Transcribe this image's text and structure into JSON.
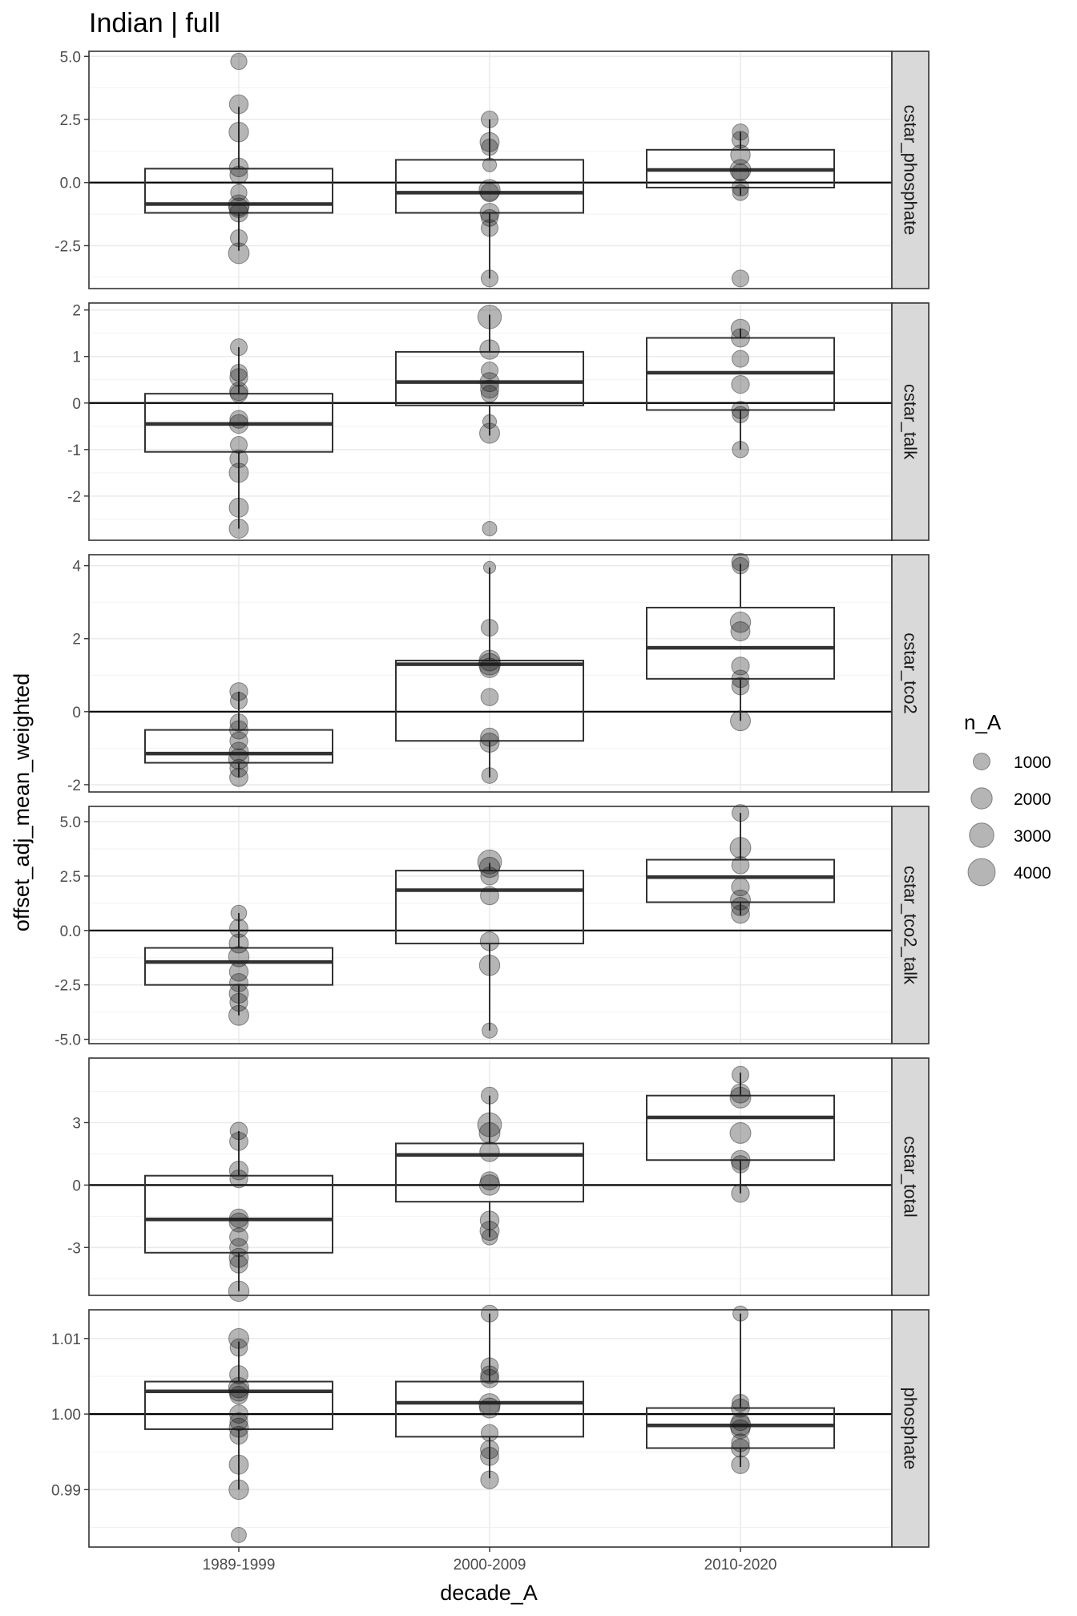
{
  "chart_data": {
    "type": "boxplot",
    "title": "Indian | full",
    "xlabel": "decade_A",
    "ylabel": "offset_adj_mean_weighted",
    "categories": [
      "1989-1999",
      "2000-2009",
      "2010-2020"
    ],
    "legend": {
      "title": "n_A",
      "placement": "right",
      "values": [
        1000,
        2000,
        3000,
        4000
      ],
      "labels": [
        "1000",
        "2000",
        "3000",
        "4000"
      ]
    },
    "facets": [
      {
        "label": "cstar_phosphate",
        "ylim": [
          -4.2,
          5.2
        ],
        "ticks": [
          -2.5,
          0.0,
          2.5,
          5.0
        ],
        "tick_labels": [
          "-2.5",
          "0.0",
          "2.5",
          "5.0"
        ],
        "hline": 0,
        "boxes": [
          {
            "q1": -1.2,
            "median": -0.85,
            "q3": 0.55,
            "low": -2.7,
            "high": 3.0
          },
          {
            "q1": -1.2,
            "median": -0.4,
            "q3": 0.9,
            "low": -3.8,
            "high": 2.5
          },
          {
            "q1": -0.2,
            "median": 0.5,
            "q3": 1.3,
            "low": -0.5,
            "high": 2.0
          }
        ],
        "points": [
          [
            [
              4.8,
              900
            ],
            [
              3.1,
              1400
            ],
            [
              2.0,
              1600
            ],
            [
              0.6,
              1400
            ],
            [
              0.3,
              1200
            ],
            [
              -0.4,
              900
            ],
            [
              -0.9,
              1900
            ],
            [
              -1.0,
              1600
            ],
            [
              -1.2,
              1300
            ],
            [
              -2.2,
              1000
            ],
            [
              -2.8,
              1900
            ]
          ],
          [
            [
              2.5,
              1000
            ],
            [
              1.6,
              1500
            ],
            [
              1.4,
              900
            ],
            [
              0.7,
              500
            ],
            [
              -0.3,
              2000
            ],
            [
              -0.4,
              1300
            ],
            [
              -1.2,
              1500
            ],
            [
              -1.4,
              1000
            ],
            [
              -1.8,
              1000
            ],
            [
              -3.8,
              1000
            ]
          ],
          [
            [
              2.0,
              900
            ],
            [
              1.7,
              1000
            ],
            [
              1.1,
              1600
            ],
            [
              0.5,
              1900
            ],
            [
              0.4,
              1100
            ],
            [
              -0.2,
              1000
            ],
            [
              -0.4,
              800
            ],
            [
              -3.8,
              1000
            ]
          ]
        ]
      },
      {
        "label": "cstar_talk",
        "ylim": [
          -2.95,
          2.15
        ],
        "ticks": [
          -2,
          -1,
          0,
          1,
          2
        ],
        "tick_labels": [
          "-2",
          "-1",
          "0",
          "1",
          "2"
        ],
        "hline": 0,
        "boxes": [
          {
            "q1": -1.05,
            "median": -0.45,
            "q3": 0.2,
            "low": -2.7,
            "high": 1.2
          },
          {
            "q1": -0.05,
            "median": 0.45,
            "q3": 1.1,
            "low": -0.7,
            "high": 1.9
          },
          {
            "q1": -0.15,
            "median": 0.65,
            "q3": 1.4,
            "low": -1.0,
            "high": 1.6
          }
        ],
        "points": [
          [
            [
              1.2,
              1000
            ],
            [
              0.65,
              1000
            ],
            [
              0.55,
              1200
            ],
            [
              0.25,
              1300
            ],
            [
              0.2,
              1100
            ],
            [
              -0.35,
              1200
            ],
            [
              -0.45,
              1400
            ],
            [
              -0.9,
              1000
            ],
            [
              -1.2,
              1200
            ],
            [
              -1.5,
              1500
            ],
            [
              -2.25,
              1500
            ],
            [
              -2.7,
              1500
            ]
          ],
          [
            [
              1.85,
              2700
            ],
            [
              1.15,
              1600
            ],
            [
              0.7,
              1000
            ],
            [
              0.45,
              1500
            ],
            [
              0.3,
              1300
            ],
            [
              0.2,
              1000
            ],
            [
              -0.4,
              500
            ],
            [
              -0.65,
              1700
            ],
            [
              -2.7,
              600
            ]
          ],
          [
            [
              1.6,
              1400
            ],
            [
              1.4,
              1300
            ],
            [
              0.95,
              1000
            ],
            [
              0.4,
              1200
            ],
            [
              -0.15,
              1100
            ],
            [
              -0.25,
              900
            ],
            [
              -1.0,
              900
            ]
          ]
        ]
      },
      {
        "label": "cstar_tco2",
        "ylim": [
          -2.2,
          4.3
        ],
        "ticks": [
          -2,
          0,
          2,
          4
        ],
        "tick_labels": [
          "-2",
          "0",
          "2",
          "4"
        ],
        "hline": 0,
        "boxes": [
          {
            "q1": -1.4,
            "median": -1.15,
            "q3": -0.5,
            "low": -1.8,
            "high": 0.55
          },
          {
            "q1": -0.8,
            "median": 1.3,
            "q3": 1.4,
            "low": -1.8,
            "high": 3.95
          },
          {
            "q1": 0.9,
            "median": 1.75,
            "q3": 2.85,
            "low": -0.25,
            "high": 4.05
          }
        ],
        "points": [
          [
            [
              0.55,
              1200
            ],
            [
              0.3,
              1000
            ],
            [
              -0.3,
              1100
            ],
            [
              -0.5,
              1300
            ],
            [
              -0.8,
              1200
            ],
            [
              -1.1,
              1500
            ],
            [
              -1.3,
              1800
            ],
            [
              -1.55,
              1200
            ],
            [
              -1.8,
              1300
            ]
          ],
          [
            [
              3.95,
              300
            ],
            [
              2.3,
              1000
            ],
            [
              1.4,
              1900
            ],
            [
              1.3,
              2100
            ],
            [
              1.2,
              1600
            ],
            [
              0.4,
              1100
            ],
            [
              -0.7,
              1300
            ],
            [
              -0.85,
              1500
            ],
            [
              -1.75,
              800
            ]
          ],
          [
            [
              4.1,
              1100
            ],
            [
              4.0,
              900
            ],
            [
              2.45,
              1800
            ],
            [
              2.2,
              1500
            ],
            [
              1.25,
              1200
            ],
            [
              0.9,
              1100
            ],
            [
              0.7,
              1100
            ],
            [
              -0.25,
              1700
            ]
          ]
        ]
      },
      {
        "label": "cstar_tco2_talk",
        "ylim": [
          -5.2,
          5.7
        ],
        "ticks": [
          -5.0,
          -2.5,
          0.0,
          2.5,
          5.0
        ],
        "tick_labels": [
          "-5.0",
          "-2.5",
          "0.0",
          "2.5",
          "5.0"
        ],
        "hline": 0,
        "boxes": [
          {
            "q1": -2.5,
            "median": -1.45,
            "q3": -0.8,
            "low": -3.9,
            "high": 0.8
          },
          {
            "q1": -0.6,
            "median": 1.85,
            "q3": 2.75,
            "low": -4.6,
            "high": 3.1
          },
          {
            "q1": 1.3,
            "median": 2.45,
            "q3": 3.25,
            "low": 0.7,
            "high": 5.4
          }
        ],
        "points": [
          [
            [
              0.8,
              800
            ],
            [
              0.1,
              1300
            ],
            [
              -0.6,
              1500
            ],
            [
              -1.2,
              1800
            ],
            [
              -1.9,
              1400
            ],
            [
              -2.4,
              1300
            ],
            [
              -2.9,
              1500
            ],
            [
              -3.3,
              1200
            ],
            [
              -3.9,
              1700
            ]
          ],
          [
            [
              3.15,
              2800
            ],
            [
              2.9,
              1800
            ],
            [
              2.5,
              1200
            ],
            [
              1.6,
              1300
            ],
            [
              -0.5,
              1400
            ],
            [
              -1.6,
              1800
            ],
            [
              -4.6,
              700
            ]
          ],
          [
            [
              5.4,
              1000
            ],
            [
              3.8,
              1900
            ],
            [
              3.0,
              1100
            ],
            [
              2.0,
              1200
            ],
            [
              1.4,
              1700
            ],
            [
              1.1,
              1300
            ],
            [
              0.75,
              1300
            ]
          ]
        ]
      },
      {
        "label": "cstar_total",
        "ylim": [
          -5.3,
          6.1
        ],
        "ticks": [
          -3,
          0,
          3
        ],
        "tick_labels": [
          "-3",
          "0",
          "3"
        ],
        "hline": 0,
        "boxes": [
          {
            "q1": -3.25,
            "median": -1.65,
            "q3": 0.45,
            "low": -5.1,
            "high": 2.6
          },
          {
            "q1": -0.8,
            "median": 1.45,
            "q3": 2.0,
            "low": -2.5,
            "high": 4.3
          },
          {
            "q1": 1.2,
            "median": 3.25,
            "q3": 4.3,
            "low": -0.4,
            "high": 5.4
          }
        ],
        "points": [
          [
            [
              2.6,
              1100
            ],
            [
              2.1,
              1300
            ],
            [
              0.7,
              1400
            ],
            [
              0.3,
              1200
            ],
            [
              -1.6,
              1400
            ],
            [
              -1.8,
              1500
            ],
            [
              -2.5,
              1300
            ],
            [
              -3.0,
              1300
            ],
            [
              -3.5,
              1500
            ],
            [
              -3.8,
              1200
            ],
            [
              -5.1,
              1800
            ]
          ],
          [
            [
              4.3,
              1000
            ],
            [
              2.9,
              2800
            ],
            [
              2.5,
              1900
            ],
            [
              1.6,
              1600
            ],
            [
              0.2,
              1300
            ],
            [
              0.0,
              1800
            ],
            [
              -1.7,
              1400
            ],
            [
              -2.2,
              1500
            ],
            [
              -2.5,
              800
            ]
          ],
          [
            [
              5.3,
              1000
            ],
            [
              4.4,
              1500
            ],
            [
              4.2,
              1900
            ],
            [
              2.5,
              1900
            ],
            [
              1.2,
              1500
            ],
            [
              1.0,
              1100
            ],
            [
              -0.4,
              1200
            ]
          ]
        ]
      },
      {
        "label": "phosphate",
        "ylim": [
          0.9824,
          1.0138
        ],
        "ticks": [
          0.99,
          1.0,
          1.01
        ],
        "tick_labels": [
          "0.99",
          "1.00",
          "1.01"
        ],
        "hline": 1.0,
        "boxes": [
          {
            "q1": 0.998,
            "median": 1.003,
            "q3": 1.0043,
            "low": 0.99,
            "high": 1.0096
          },
          {
            "q1": 0.997,
            "median": 1.0015,
            "q3": 1.0043,
            "low": 0.9915,
            "high": 1.0133
          },
          {
            "q1": 0.9955,
            "median": 0.9985,
            "q3": 1.0008,
            "low": 0.993,
            "high": 1.0133
          }
        ],
        "points": [
          [
            [
              1.01,
              1700
            ],
            [
              1.0088,
              1100
            ],
            [
              1.0052,
              1300
            ],
            [
              1.0035,
              1800
            ],
            [
              1.003,
              1600
            ],
            [
              1.0025,
              1200
            ],
            [
              1.0,
              1300
            ],
            [
              0.999,
              1200
            ],
            [
              0.9982,
              1500
            ],
            [
              0.9972,
              1200
            ],
            [
              0.9933,
              1500
            ],
            [
              0.99,
              1600
            ],
            [
              0.984,
              700
            ]
          ],
          [
            [
              1.0133,
              1000
            ],
            [
              1.0063,
              1100
            ],
            [
              1.0052,
              1200
            ],
            [
              1.0047,
              1300
            ],
            [
              1.0013,
              2000
            ],
            [
              1.0008,
              1700
            ],
            [
              0.9975,
              1000
            ],
            [
              0.9953,
              1300
            ],
            [
              0.9944,
              1300
            ],
            [
              0.9913,
              1200
            ]
          ],
          [
            [
              1.0133,
              700
            ],
            [
              1.0015,
              1000
            ],
            [
              1.0008,
              1300
            ],
            [
              0.999,
              1200
            ],
            [
              0.9985,
              1900
            ],
            [
              0.998,
              1400
            ],
            [
              0.9962,
              1200
            ],
            [
              0.9955,
              1300
            ],
            [
              0.9933,
              1200
            ]
          ]
        ]
      }
    ]
  }
}
